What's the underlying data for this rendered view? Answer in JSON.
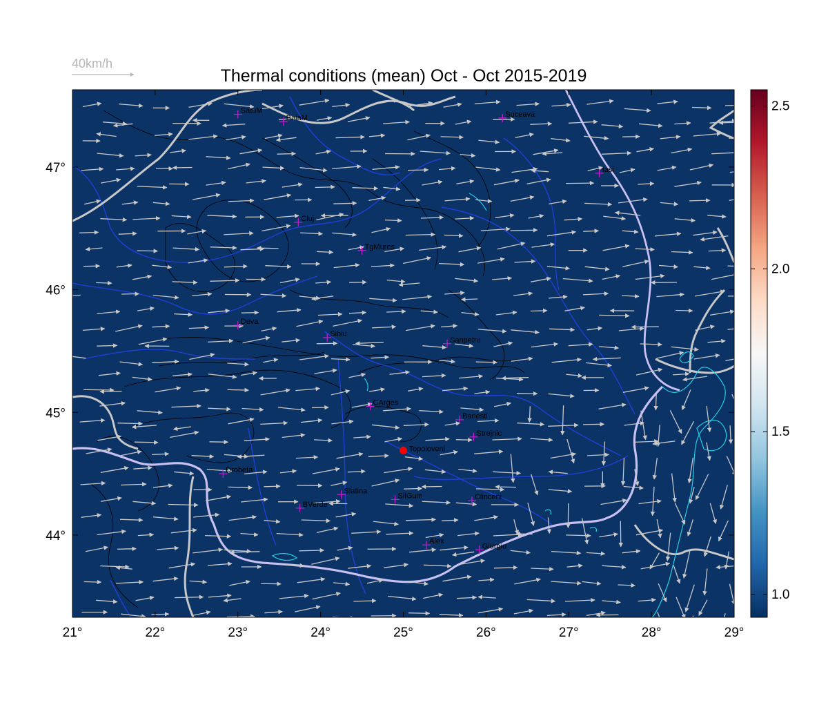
{
  "title": "Thermal conditions (mean) Oct - Oct  2015-2019",
  "wind_legend": {
    "label": "40km/h"
  },
  "map": {
    "lon_range": [
      21,
      29
    ],
    "lat_range": [
      43.33,
      47.63
    ],
    "background_color": "#0b3366",
    "river_color": "#1f3fd6",
    "lake_color": "#21d0e6",
    "border_color": "#c8c8c8",
    "danube_color": "#c9c0f2",
    "marker_color": "#c51fd0",
    "highlight_color": "#ff0000",
    "x_ticks": [
      "21°",
      "22°",
      "23°",
      "24°",
      "25°",
      "26°",
      "27°",
      "28°",
      "29°"
    ],
    "y_ticks": [
      "44°",
      "45°",
      "46°",
      "47°"
    ],
    "colorbar": {
      "ticks": [
        "1.0",
        "1.5",
        "2.0",
        "2.5"
      ],
      "tick_values": [
        1.0,
        1.5,
        2.0,
        2.5
      ],
      "range": [
        0.93,
        2.55
      ],
      "colors": [
        "#053061",
        "#2166ac",
        "#4393c3",
        "#92c5de",
        "#d1e5f0",
        "#f7f7f7",
        "#fddbc7",
        "#f4a582",
        "#d6604d",
        "#b2182b",
        "#67001f"
      ]
    },
    "cities": [
      {
        "name": "SatuM",
        "lon": 23.0,
        "lat": 47.43
      },
      {
        "name": "BaiaM",
        "lon": 23.55,
        "lat": 47.37
      },
      {
        "name": "Suceava",
        "lon": 26.2,
        "lat": 47.4
      },
      {
        "name": "Iasi",
        "lon": 27.37,
        "lat": 46.95
      },
      {
        "name": "Cluj",
        "lon": 23.73,
        "lat": 46.55
      },
      {
        "name": "TgMures",
        "lon": 24.5,
        "lat": 46.32
      },
      {
        "name": "Deva",
        "lon": 23.0,
        "lat": 45.71
      },
      {
        "name": "Sibiu",
        "lon": 24.08,
        "lat": 45.61
      },
      {
        "name": "Sanpetru",
        "lon": 25.53,
        "lat": 45.56
      },
      {
        "name": "CArges",
        "lon": 24.6,
        "lat": 45.05
      },
      {
        "name": "Banesti",
        "lon": 25.68,
        "lat": 44.94
      },
      {
        "name": "Strejnic",
        "lon": 25.85,
        "lat": 44.8
      },
      {
        "name": "Drobeta",
        "lon": 22.82,
        "lat": 44.5
      },
      {
        "name": "Slatina",
        "lon": 24.25,
        "lat": 44.33
      },
      {
        "name": "SilGum",
        "lon": 24.9,
        "lat": 44.29
      },
      {
        "name": "Clinceni",
        "lon": 25.83,
        "lat": 44.28
      },
      {
        "name": "BVerde",
        "lon": 23.75,
        "lat": 44.22
      },
      {
        "name": "Alex",
        "lon": 25.28,
        "lat": 43.92
      },
      {
        "name": "Giurgiu",
        "lon": 25.92,
        "lat": 43.88
      }
    ],
    "highlight_station": {
      "name": "Topoloveni",
      "lon": 25.0,
      "lat": 44.69
    }
  }
}
